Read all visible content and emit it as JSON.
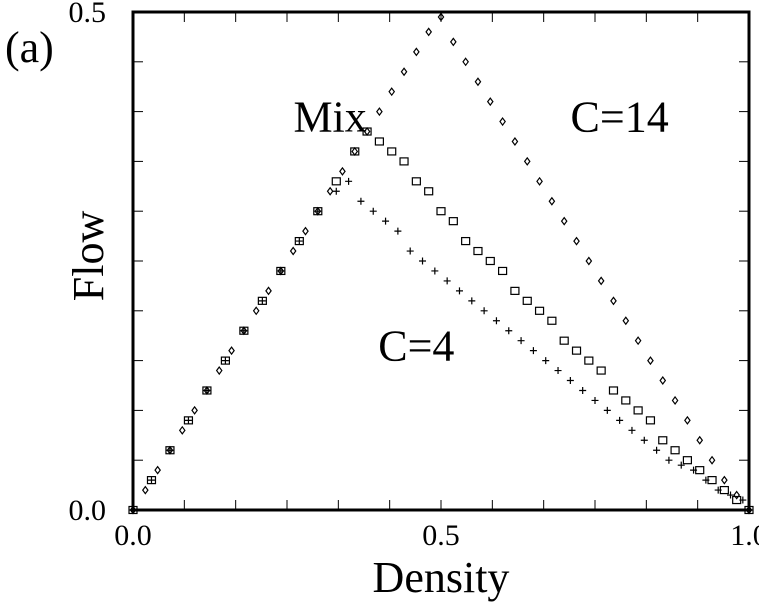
{
  "chart_data": {
    "type": "scatter",
    "panel_label": "(a)",
    "xlabel": "Density",
    "ylabel": "Flow",
    "xlim": [
      0.0,
      1.0
    ],
    "ylim": [
      0.0,
      0.5
    ],
    "x_ticks": [
      {
        "value": 0.0,
        "label": "0.0"
      },
      {
        "value": 0.5,
        "label": "0.5"
      },
      {
        "value": 1.0,
        "label": "1.0"
      }
    ],
    "y_ticks": [
      {
        "value": 0.0,
        "label": "0.0"
      },
      {
        "value": 0.5,
        "label": "0.5"
      }
    ],
    "grid": false,
    "annotations": [
      {
        "text": "Mix",
        "x": 0.32,
        "y": 0.38
      },
      {
        "text": "C=14",
        "x": 0.79,
        "y": 0.38
      },
      {
        "text": "C=4",
        "x": 0.46,
        "y": 0.15
      }
    ],
    "series": [
      {
        "marker": "diamond",
        "x": [
          0.0,
          0.02,
          0.04,
          0.06,
          0.08,
          0.1,
          0.12,
          0.14,
          0.16,
          0.18,
          0.2,
          0.22,
          0.24,
          0.26,
          0.28,
          0.3,
          0.32,
          0.34,
          0.36,
          0.38,
          0.4,
          0.42,
          0.44,
          0.46,
          0.48,
          0.5,
          0.52,
          0.54,
          0.56,
          0.58,
          0.6,
          0.62,
          0.64,
          0.66,
          0.68,
          0.7,
          0.72,
          0.74,
          0.76,
          0.78,
          0.8,
          0.82,
          0.84,
          0.86,
          0.88,
          0.9,
          0.92,
          0.94,
          0.96,
          0.98,
          1.0
        ],
        "y": [
          0.0,
          0.02,
          0.04,
          0.06,
          0.08,
          0.1,
          0.12,
          0.14,
          0.16,
          0.18,
          0.2,
          0.22,
          0.24,
          0.26,
          0.28,
          0.3,
          0.32,
          0.34,
          0.36,
          0.38,
          0.4,
          0.42,
          0.44,
          0.46,
          0.48,
          0.495,
          0.47,
          0.45,
          0.43,
          0.41,
          0.39,
          0.37,
          0.35,
          0.33,
          0.31,
          0.29,
          0.27,
          0.25,
          0.23,
          0.21,
          0.19,
          0.17,
          0.15,
          0.13,
          0.11,
          0.09,
          0.07,
          0.05,
          0.03,
          0.015,
          0.0
        ]
      },
      {
        "marker": "square",
        "x": [
          0.0,
          0.03,
          0.06,
          0.09,
          0.12,
          0.15,
          0.18,
          0.21,
          0.24,
          0.27,
          0.3,
          0.33,
          0.36,
          0.38,
          0.4,
          0.42,
          0.44,
          0.46,
          0.48,
          0.5,
          0.52,
          0.54,
          0.56,
          0.58,
          0.6,
          0.62,
          0.64,
          0.66,
          0.68,
          0.7,
          0.72,
          0.74,
          0.76,
          0.78,
          0.8,
          0.82,
          0.84,
          0.86,
          0.88,
          0.9,
          0.92,
          0.94,
          0.96,
          0.98,
          1.0
        ],
        "y": [
          0.0,
          0.03,
          0.06,
          0.09,
          0.12,
          0.15,
          0.18,
          0.21,
          0.24,
          0.27,
          0.3,
          0.33,
          0.36,
          0.38,
          0.37,
          0.36,
          0.35,
          0.33,
          0.32,
          0.3,
          0.29,
          0.27,
          0.26,
          0.25,
          0.24,
          0.22,
          0.21,
          0.2,
          0.19,
          0.17,
          0.16,
          0.15,
          0.14,
          0.12,
          0.11,
          0.1,
          0.09,
          0.07,
          0.06,
          0.05,
          0.04,
          0.03,
          0.02,
          0.01,
          0.0
        ]
      },
      {
        "marker": "plus",
        "x": [
          0.0,
          0.03,
          0.06,
          0.09,
          0.12,
          0.15,
          0.18,
          0.21,
          0.24,
          0.27,
          0.3,
          0.33,
          0.35,
          0.37,
          0.39,
          0.41,
          0.43,
          0.45,
          0.47,
          0.49,
          0.51,
          0.53,
          0.55,
          0.57,
          0.59,
          0.61,
          0.63,
          0.65,
          0.67,
          0.69,
          0.71,
          0.73,
          0.75,
          0.77,
          0.79,
          0.81,
          0.83,
          0.85,
          0.87,
          0.89,
          0.91,
          0.93,
          0.95,
          0.97,
          0.99,
          1.0
        ],
        "y": [
          0.0,
          0.03,
          0.06,
          0.09,
          0.12,
          0.15,
          0.18,
          0.21,
          0.24,
          0.27,
          0.3,
          0.32,
          0.33,
          0.31,
          0.3,
          0.29,
          0.28,
          0.26,
          0.25,
          0.24,
          0.23,
          0.22,
          0.21,
          0.2,
          0.19,
          0.18,
          0.17,
          0.16,
          0.15,
          0.14,
          0.13,
          0.12,
          0.11,
          0.1,
          0.09,
          0.08,
          0.07,
          0.06,
          0.05,
          0.045,
          0.04,
          0.03,
          0.02,
          0.015,
          0.01,
          0.0
        ]
      }
    ]
  }
}
